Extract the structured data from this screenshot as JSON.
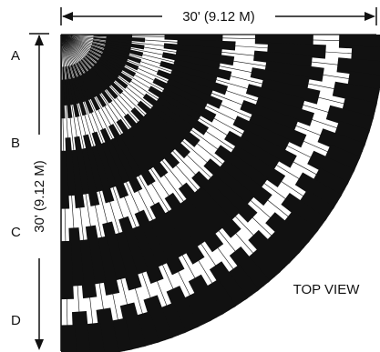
{
  "dimensions": {
    "horizontal": "30' (9.12 M)",
    "vertical": "30' (9.12 M)"
  },
  "zone_labels": [
    "A",
    "B",
    "C",
    "D"
  ],
  "view_label": "TOP VIEW",
  "colors": {
    "ink": "#111111",
    "background": "#ffffff"
  },
  "detection_pattern": {
    "rays": 36,
    "spread_degrees": [
      0,
      90
    ],
    "zone_bands_per_ray": 4
  }
}
